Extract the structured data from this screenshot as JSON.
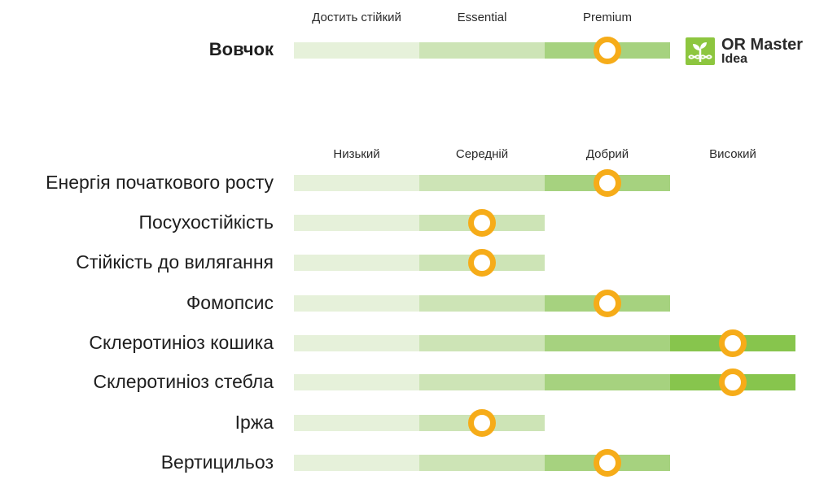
{
  "colors": {
    "seg": [
      "#e6f1da",
      "#cde4b6",
      "#a6d27f",
      "#87c54d"
    ],
    "marker": "#f6ac19",
    "logo_green": "#8dc63f"
  },
  "logo": {
    "line1": "OR Master",
    "line2": "Idea",
    "icon": "sprout-dna-icon"
  },
  "chart_data": [
    {
      "type": "table",
      "columns": [
        "Достить стійкий",
        "Essential",
        "Premium"
      ],
      "rows": [
        {
          "label": "Вовчок",
          "level": 3,
          "max": 3
        }
      ]
    },
    {
      "type": "table",
      "columns": [
        "Низький",
        "Середній",
        "Добрий",
        "Високий"
      ],
      "rows": [
        {
          "label": "Енергія початкового росту",
          "level": 3
        },
        {
          "label": "Посухостійкість",
          "level": 2
        },
        {
          "label": "Стійкість до вилягання",
          "level": 2
        },
        {
          "label": "Фомопсис",
          "level": 3
        },
        {
          "label": "Склеротиніоз кошика",
          "level": 4
        },
        {
          "label": "Склеротиніоз стебла",
          "level": 4
        },
        {
          "label": "Іржа",
          "level": 2
        },
        {
          "label": "Вертицильоз",
          "level": 3
        }
      ]
    }
  ]
}
